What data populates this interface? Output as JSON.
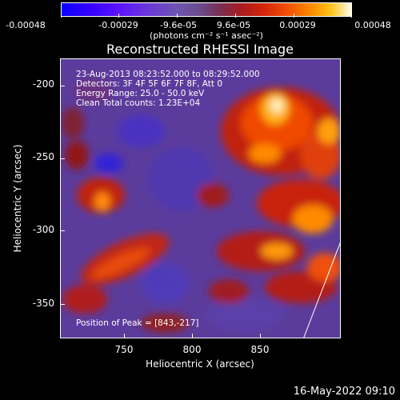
{
  "colorbar": {
    "ticks": [
      "-0.00048",
      "-0.00029",
      "-9.6e-05",
      "9.6e-05",
      "0.00029",
      "0.00048"
    ],
    "units": "(photons cm⁻² s⁻¹ asec⁻²)"
  },
  "plot": {
    "title": "Reconstructed RHESSI Image",
    "annotations": {
      "time_range": "23-Aug-2013 08:23:52.000 to 08:29:52.000",
      "detectors": "Detectors: 3F 4F 5F 6F 7F 8F, Att 0",
      "energy": "Energy Range: 25.0 - 50.0 keV",
      "clean": "Clean     Total counts: 1.23E+04",
      "peak": "Position of Peak = [843,-217]"
    },
    "y_ticks": [
      "-200",
      "-250",
      "-300",
      "-350"
    ],
    "x_ticks": [
      "750",
      "800",
      "850"
    ],
    "ylabel": "Heliocentric Y (arcsec)",
    "xlabel": "Heliocentric X (arcsec)"
  },
  "timestamp": "16-May-2022 09:10"
}
